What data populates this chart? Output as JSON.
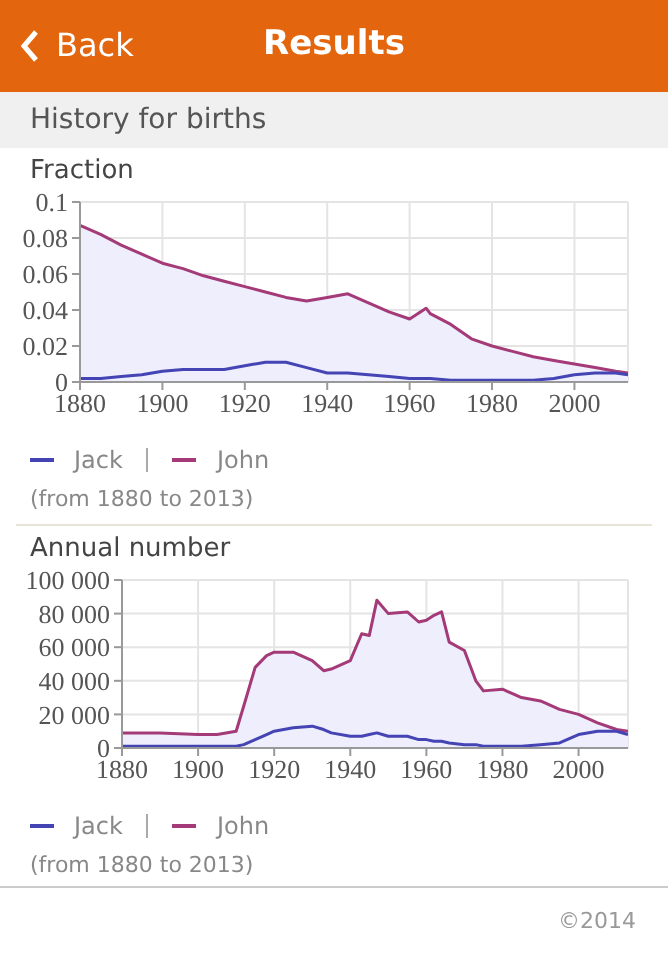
{
  "chart_data": [
    {
      "type": "line",
      "title": "Fraction",
      "annotations": [
        "Back",
        "Results",
        "History for births",
        "(from 1880 to 2013)"
      ],
      "x": [
        1880,
        1885,
        1890,
        1895,
        1900,
        1905,
        1910,
        1915,
        1920,
        1925,
        1930,
        1935,
        1940,
        1945,
        1950,
        1955,
        1960,
        1964,
        1965,
        1970,
        1975,
        1980,
        1985,
        1990,
        1995,
        2000,
        2005,
        2010,
        2013
      ],
      "series": [
        {
          "name": "Jack",
          "type": "line",
          "color": "#4444b4",
          "values": [
            0.002,
            0.002,
            0.003,
            0.004,
            0.006,
            0.007,
            0.007,
            0.007,
            0.009,
            0.011,
            0.011,
            0.008,
            0.005,
            0.005,
            0.004,
            0.003,
            0.002,
            0.002,
            0.002,
            0.001,
            0.001,
            0.001,
            0.001,
            0.001,
            0.002,
            0.004,
            0.005,
            0.005,
            0.004
          ]
        },
        {
          "name": "John",
          "type": "area",
          "color": "#a43a78",
          "values": [
            0.087,
            0.082,
            0.076,
            0.071,
            0.066,
            0.063,
            0.059,
            0.056,
            0.053,
            0.05,
            0.047,
            0.045,
            0.047,
            0.049,
            0.044,
            0.039,
            0.035,
            0.041,
            0.038,
            0.032,
            0.024,
            0.02,
            0.017,
            0.014,
            0.012,
            0.01,
            0.008,
            0.006,
            0.005
          ]
        }
      ],
      "xlim": [
        1880,
        2013
      ],
      "xticks": [
        1880,
        1900,
        1920,
        1940,
        1960,
        1980,
        2000
      ],
      "ylim": [
        0,
        0.1
      ],
      "yticks": [
        0,
        0.02,
        0.04,
        0.06,
        0.08,
        0.1
      ],
      "grid": true,
      "legend": "bottom"
    },
    {
      "type": "line",
      "title": "Annual number",
      "annotations": [
        "(from 1880 to 2013)",
        "©2014"
      ],
      "x": [
        1880,
        1890,
        1900,
        1905,
        1910,
        1912,
        1915,
        1918,
        1920,
        1925,
        1930,
        1933,
        1935,
        1940,
        1943,
        1945,
        1947,
        1950,
        1955,
        1958,
        1960,
        1962,
        1964,
        1966,
        1970,
        1973,
        1975,
        1980,
        1985,
        1990,
        1995,
        2000,
        2005,
        2010,
        2013
      ],
      "series": [
        {
          "name": "Jack",
          "type": "line",
          "color": "#4444b4",
          "values": [
            1000,
            1000,
            1000,
            1000,
            1000,
            2000,
            5000,
            8000,
            10000,
            12000,
            13000,
            11000,
            9000,
            7000,
            7000,
            8000,
            9000,
            7000,
            7000,
            5000,
            5000,
            4000,
            4000,
            3000,
            2000,
            2000,
            1000,
            1000,
            1000,
            2000,
            3000,
            8000,
            10000,
            10000,
            8000
          ]
        },
        {
          "name": "John",
          "type": "area",
          "color": "#a43a78",
          "values": [
            9000,
            9000,
            8000,
            8000,
            10000,
            25000,
            48000,
            55000,
            57000,
            57000,
            52000,
            46000,
            47000,
            52000,
            68000,
            67000,
            88000,
            80000,
            81000,
            75000,
            76000,
            79000,
            81000,
            63000,
            58000,
            40000,
            34000,
            35000,
            30000,
            28000,
            23000,
            20000,
            15000,
            11000,
            10000
          ]
        }
      ],
      "xlim": [
        1880,
        2013
      ],
      "xticks": [
        1880,
        1900,
        1920,
        1940,
        1960,
        1980,
        2000
      ],
      "ylim": [
        0,
        100000
      ],
      "yticks": [
        0,
        {
          "value": 20000,
          "label": "20 000"
        },
        {
          "value": 40000,
          "label": "40 000"
        },
        {
          "value": 60000,
          "label": "60 000"
        },
        {
          "value": 80000,
          "label": "80 000"
        },
        {
          "value": 100000,
          "label": "100 000"
        }
      ],
      "grid": true,
      "legend": "bottom"
    }
  ]
}
